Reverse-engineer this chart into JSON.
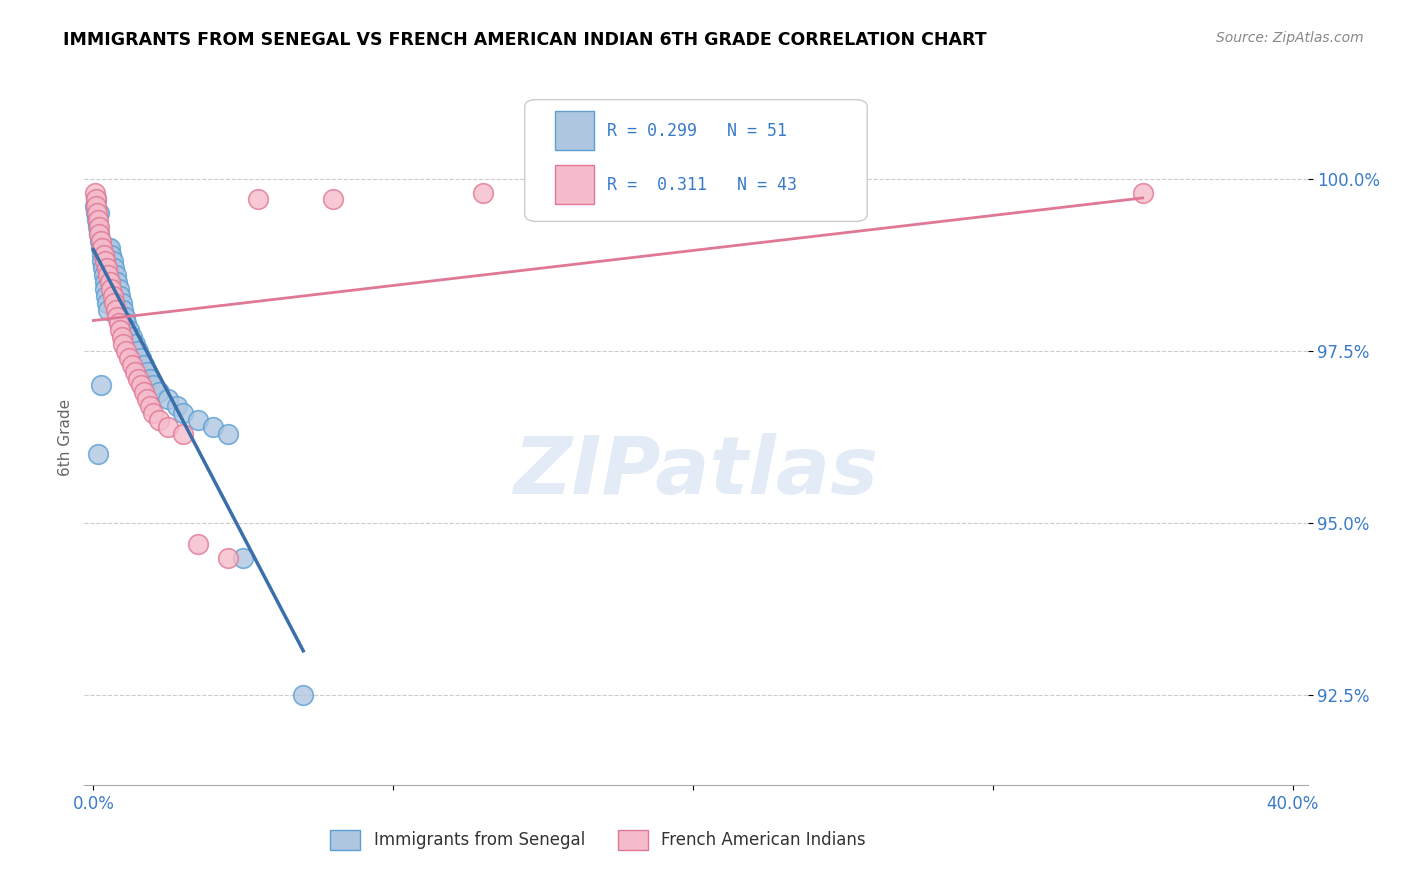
{
  "title": "IMMIGRANTS FROM SENEGAL VS FRENCH AMERICAN INDIAN 6TH GRADE CORRELATION CHART",
  "source": "Source: ZipAtlas.com",
  "ylabel_label": "6th Grade",
  "ylabel_ticks": [
    "92.5%",
    "95.0%",
    "97.5%",
    "100.0%"
  ],
  "ylabel_values": [
    92.5,
    95.0,
    97.5,
    100.0
  ],
  "xlim": [
    -0.3,
    40.5
  ],
  "ylim": [
    91.2,
    101.3
  ],
  "blue_R": "0.299",
  "blue_N": "51",
  "pink_R": "0.311",
  "pink_N": "43",
  "blue_fill": "#aec6e0",
  "blue_edge": "#5a9fd4",
  "pink_fill": "#f5bccb",
  "pink_edge": "#e07895",
  "blue_line": "#3a6faa",
  "pink_line": "#e07895",
  "text_color": "#3a7bc8",
  "legend_label_blue": "Immigrants from Senegal",
  "legend_label_pink": "French American Indians",
  "watermark_text": "ZIPatlas",
  "background": "#ffffff",
  "grid_color": "#cccccc",
  "blue_x": [
    0.05,
    0.08,
    0.1,
    0.12,
    0.15,
    0.18,
    0.2,
    0.22,
    0.25,
    0.28,
    0.3,
    0.32,
    0.35,
    0.38,
    0.4,
    0.42,
    0.45,
    0.48,
    0.5,
    0.55,
    0.6,
    0.65,
    0.7,
    0.75,
    0.8,
    0.85,
    0.9,
    0.95,
    1.0,
    1.05,
    1.1,
    1.2,
    1.3,
    1.4,
    1.5,
    1.6,
    1.7,
    1.8,
    1.9,
    2.0,
    2.2,
    2.5,
    2.8,
    3.0,
    3.5,
    4.0,
    4.5,
    5.0,
    0.15,
    0.25,
    7.0
  ],
  "blue_y": [
    99.6,
    99.5,
    99.7,
    99.4,
    99.3,
    99.2,
    99.5,
    99.1,
    99.0,
    98.9,
    98.8,
    98.7,
    98.6,
    98.5,
    98.4,
    98.3,
    98.2,
    98.1,
    99.0,
    99.0,
    98.9,
    98.8,
    98.7,
    98.6,
    98.5,
    98.4,
    98.3,
    98.2,
    98.1,
    98.0,
    97.9,
    97.8,
    97.7,
    97.6,
    97.5,
    97.4,
    97.3,
    97.2,
    97.1,
    97.0,
    96.9,
    96.8,
    96.7,
    96.6,
    96.5,
    96.4,
    96.3,
    94.5,
    96.0,
    97.0,
    92.5
  ],
  "pink_x": [
    0.05,
    0.08,
    0.1,
    0.12,
    0.15,
    0.18,
    0.2,
    0.25,
    0.3,
    0.35,
    0.4,
    0.45,
    0.5,
    0.55,
    0.6,
    0.65,
    0.7,
    0.75,
    0.8,
    0.85,
    0.9,
    0.95,
    1.0,
    1.1,
    1.2,
    1.3,
    1.4,
    1.5,
    1.6,
    1.7,
    1.8,
    1.9,
    2.0,
    2.2,
    2.5,
    3.0,
    3.5,
    4.5,
    5.5,
    13.0,
    20.0,
    35.0,
    8.0
  ],
  "pink_y": [
    99.8,
    99.7,
    99.6,
    99.5,
    99.4,
    99.3,
    99.2,
    99.1,
    99.0,
    98.9,
    98.8,
    98.7,
    98.6,
    98.5,
    98.4,
    98.3,
    98.2,
    98.1,
    98.0,
    97.9,
    97.8,
    97.7,
    97.6,
    97.5,
    97.4,
    97.3,
    97.2,
    97.1,
    97.0,
    96.9,
    96.8,
    96.7,
    96.6,
    96.5,
    96.4,
    96.3,
    94.7,
    94.5,
    99.7,
    99.8,
    99.8,
    99.8,
    99.7
  ]
}
